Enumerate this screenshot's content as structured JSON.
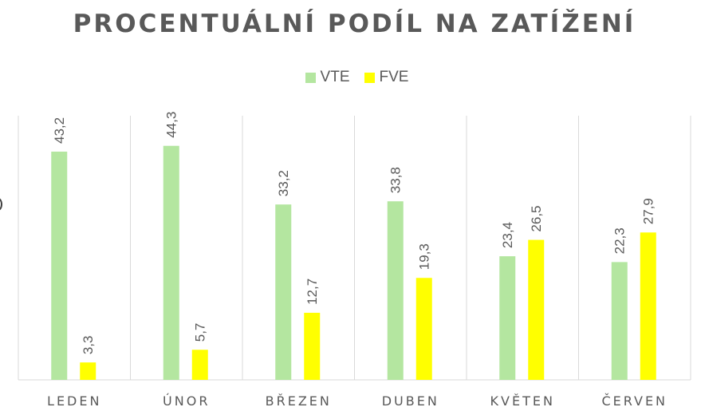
{
  "colors": {
    "vte": "#b4e6a0",
    "fve": "#ffff00",
    "grid": "#d9d9d9",
    "text": "#595959"
  },
  "chart_data": {
    "type": "bar",
    "title": "PROCENTUÁLNÍ PODÍL NA ZATÍŽENÍ",
    "xlabel": "",
    "ylabel": "",
    "ylim": [
      0,
      50
    ],
    "grid": "vertical category separators",
    "legend_position": "top",
    "categories": [
      "LEDEN",
      "ÚNOR",
      "BŘEZEN",
      "DUBEN",
      "KVĚTEN",
      "ČERVEN"
    ],
    "series": [
      {
        "name": "VTE",
        "values": [
          43.2,
          44.3,
          33.2,
          33.8,
          23.4,
          22.3
        ],
        "labels": [
          "43,2",
          "44,3",
          "33,2",
          "33,8",
          "23,4",
          "22,3"
        ]
      },
      {
        "name": "FVE",
        "values": [
          3.3,
          5.7,
          12.7,
          19.3,
          26.5,
          27.9
        ],
        "labels": [
          "3,3",
          "5,7",
          "12,7",
          "19,3",
          "26,5",
          "27,9"
        ]
      }
    ]
  }
}
